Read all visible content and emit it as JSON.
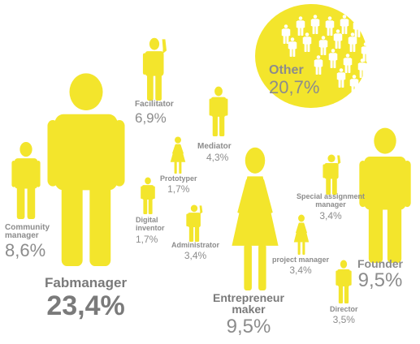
{
  "colors": {
    "figure": "#f3e52c",
    "text": "#8c8c8c",
    "text_dark": "#7a7a7a",
    "bubble": "#f3e52c",
    "bubble_people": "#ffffff"
  },
  "chart_data": {
    "type": "pictogram",
    "unit": "%",
    "categories": [
      {
        "id": "fabmanager",
        "name": "Fabmanager",
        "value": 23.4,
        "label": "23,4%",
        "figure": "man"
      },
      {
        "id": "other",
        "name": "Other",
        "value": 20.7,
        "label": "20,7%",
        "figure": "group"
      },
      {
        "id": "entrepreneur",
        "name": "Entrepreneur\nmaker",
        "value": 9.5,
        "label": "9,5%",
        "figure": "woman"
      },
      {
        "id": "founder",
        "name": "Founder",
        "value": 9.5,
        "label": "9,5%",
        "figure": "man"
      },
      {
        "id": "community",
        "name": "Community\nmanager",
        "value": 8.6,
        "label": "8,6%",
        "figure": "man"
      },
      {
        "id": "facilitator",
        "name": "Facilitator",
        "value": 6.9,
        "label": "6,9%",
        "figure": "man-wave"
      },
      {
        "id": "mediator",
        "name": "Mediator",
        "value": 4.3,
        "label": "4,3%",
        "figure": "man"
      },
      {
        "id": "director",
        "name": "Director",
        "value": 3.5,
        "label": "3,5%",
        "figure": "man"
      },
      {
        "id": "special",
        "name": "Special assignment\nmanager",
        "value": 3.4,
        "label": "3,4%",
        "figure": "man-wave"
      },
      {
        "id": "administrator",
        "name": "Administrator",
        "value": 3.4,
        "label": "3,4%",
        "figure": "man-wave"
      },
      {
        "id": "project",
        "name": "project manager",
        "value": 3.4,
        "label": "3,4%",
        "figure": "woman"
      },
      {
        "id": "prototyper",
        "name": "Prototyper",
        "value": 1.7,
        "label": "1,7%",
        "figure": "woman"
      },
      {
        "id": "digital",
        "name": "Digital\ninventor",
        "value": 1.7,
        "label": "1,7%",
        "figure": "man"
      }
    ]
  }
}
